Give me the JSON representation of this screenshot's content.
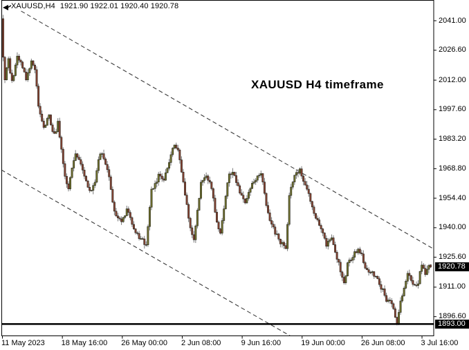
{
  "header": {
    "symbol_period": "XAUUSD,H4",
    "ohlc_values": "1921.90 1922.01 1920.40 1920.78"
  },
  "annotation": {
    "title": "XAUUSD H4 timeframe"
  },
  "price_axis": {
    "current_price_tag": "1920.78",
    "level_tag": "1893.00"
  },
  "chart_data": {
    "type": "candlestick",
    "symbol": "XAUUSD",
    "timeframe": "H4",
    "title": "XAUUSD H4 timeframe",
    "last_bar": {
      "open": 1921.9,
      "high": 1922.01,
      "low": 1920.4,
      "close": 1920.78
    },
    "bar_count": 243,
    "y_axis": {
      "step": 14.4,
      "ticks": [
        "2041.00",
        "2026.60",
        "2012.00",
        "1997.60",
        "1983.20",
        "1968.80",
        "1954.40",
        "1940.00",
        "1925.60",
        "1911.00",
        "1896.60"
      ]
    },
    "x_axis": {
      "labels": [
        "11 May 2023",
        "18 May 16:00",
        "26 May 00:00",
        "2 Jun 08:00",
        "9 Jun 16:00",
        "19 Jun 00:00",
        "26 Jun 08:00",
        "3 Jul 16:00"
      ]
    },
    "levels": {
      "support_line": 1893.0,
      "current_price": 1920.78
    },
    "channel_lines": [
      {
        "style": "dashed",
        "from_bar": 10.2,
        "from_price": 2045.7,
        "to_bar": 244.6,
        "to_price": 1929.2
      },
      {
        "style": "dashed",
        "from_bar": -1.0,
        "from_price": 1968.2,
        "to_bar": 166.2,
        "to_price": 1885.4
      }
    ],
    "colors": {
      "bull_body": "#73742e",
      "bear_body": "#8a4434",
      "wick": "#7b7b7b",
      "outline": "#24241c",
      "line": "#000000",
      "tag_bg": "#000000",
      "tag_text": "#ffffff"
    },
    "price_path": [
      [
        0,
        2036
      ],
      [
        2,
        2012
      ],
      [
        4,
        2022
      ],
      [
        6,
        2011
      ],
      [
        9,
        2023
      ],
      [
        12,
        2019
      ],
      [
        14,
        2012
      ],
      [
        17,
        2021
      ],
      [
        19,
        2017
      ],
      [
        21,
        2000
      ],
      [
        24,
        1989
      ],
      [
        27,
        1994
      ],
      [
        30,
        1985
      ],
      [
        32,
        1991
      ],
      [
        36,
        1965
      ],
      [
        38,
        1959
      ],
      [
        42,
        1977
      ],
      [
        45,
        1970
      ],
      [
        50,
        1957
      ],
      [
        53,
        1963
      ],
      [
        56,
        1977
      ],
      [
        60,
        1969
      ],
      [
        64,
        1948
      ],
      [
        68,
        1943
      ],
      [
        71,
        1949
      ],
      [
        76,
        1937
      ],
      [
        80,
        1934
      ],
      [
        82,
        1931
      ],
      [
        85,
        1958
      ],
      [
        89,
        1965
      ],
      [
        92,
        1962
      ],
      [
        95,
        1973
      ],
      [
        98,
        1981
      ],
      [
        100,
        1977
      ],
      [
        103,
        1962
      ],
      [
        106,
        1945
      ],
      [
        109,
        1933
      ],
      [
        113,
        1963
      ],
      [
        116,
        1966
      ],
      [
        119,
        1960
      ],
      [
        122,
        1942
      ],
      [
        124,
        1938
      ],
      [
        127,
        1955
      ],
      [
        129,
        1967
      ],
      [
        132,
        1966
      ],
      [
        135,
        1957
      ],
      [
        138,
        1951
      ],
      [
        140,
        1958
      ],
      [
        143,
        1962
      ],
      [
        147,
        1967
      ],
      [
        150,
        1950
      ],
      [
        153,
        1942
      ],
      [
        155,
        1938
      ],
      [
        158,
        1933
      ],
      [
        161,
        1930
      ],
      [
        163,
        1955
      ],
      [
        166,
        1966
      ],
      [
        169,
        1968
      ],
      [
        171,
        1963
      ],
      [
        174,
        1956
      ],
      [
        177,
        1948
      ],
      [
        179,
        1943
      ],
      [
        182,
        1938
      ],
      [
        184,
        1932
      ],
      [
        187,
        1935
      ],
      [
        189,
        1929
      ],
      [
        192,
        1919
      ],
      [
        194,
        1912
      ],
      [
        196,
        1922
      ],
      [
        199,
        1926
      ],
      [
        202,
        1930
      ],
      [
        204,
        1927
      ],
      [
        206,
        1921
      ],
      [
        209,
        1918
      ],
      [
        211,
        1917
      ],
      [
        214,
        1913
      ],
      [
        216,
        1909
      ],
      [
        218,
        1904
      ],
      [
        221,
        1903
      ],
      [
        223,
        1896
      ],
      [
        224,
        1893
      ],
      [
        226,
        1905
      ],
      [
        228,
        1910
      ],
      [
        230,
        1917
      ],
      [
        232,
        1914
      ],
      [
        234,
        1911
      ],
      [
        236,
        1913
      ],
      [
        238,
        1922
      ],
      [
        240,
        1917
      ],
      [
        242,
        1920.78
      ]
    ]
  }
}
